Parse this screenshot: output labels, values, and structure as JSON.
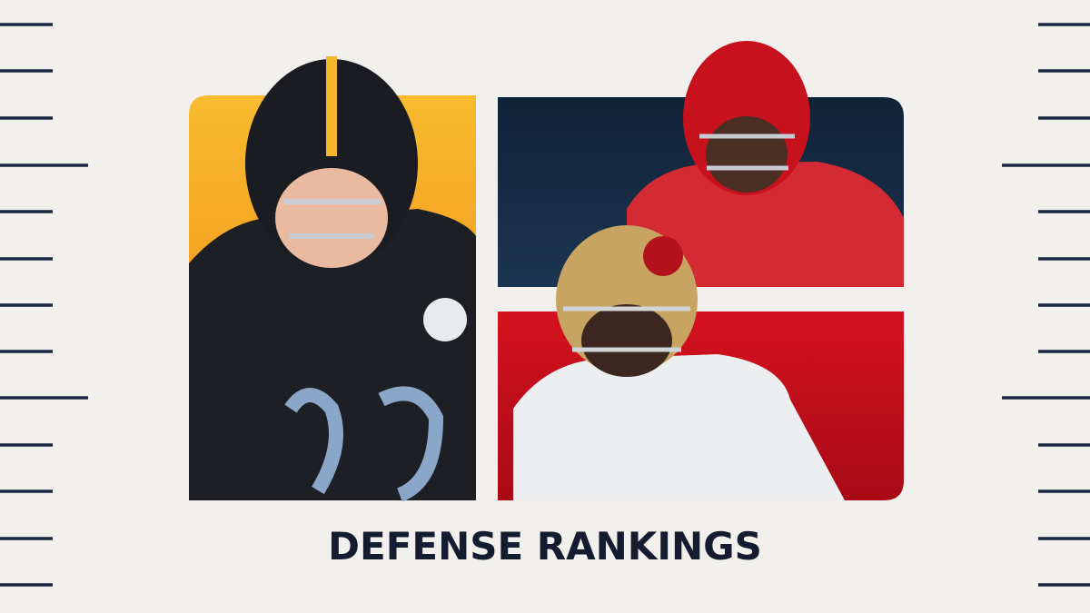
{
  "title": "DEFENSE RANKINGS"
}
